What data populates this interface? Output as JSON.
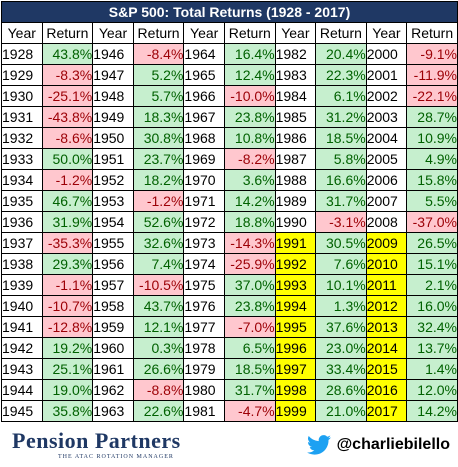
{
  "title": "S&P 500: Total Returns (1928 - 2017)",
  "headers": [
    "Year",
    "Return"
  ],
  "highlight_color": "#ffff00",
  "positive_color": "#c6efce",
  "negative_color": "#ffc7ce",
  "columns": [
    [
      {
        "year": "1928",
        "ret": "43.8%",
        "neg": false,
        "hl": false
      },
      {
        "year": "1929",
        "ret": "-8.3%",
        "neg": true,
        "hl": false
      },
      {
        "year": "1930",
        "ret": "-25.1%",
        "neg": true,
        "hl": false
      },
      {
        "year": "1931",
        "ret": "-43.8%",
        "neg": true,
        "hl": false
      },
      {
        "year": "1932",
        "ret": "-8.6%",
        "neg": true,
        "hl": false
      },
      {
        "year": "1933",
        "ret": "50.0%",
        "neg": false,
        "hl": false
      },
      {
        "year": "1934",
        "ret": "-1.2%",
        "neg": true,
        "hl": false
      },
      {
        "year": "1935",
        "ret": "46.7%",
        "neg": false,
        "hl": false
      },
      {
        "year": "1936",
        "ret": "31.9%",
        "neg": false,
        "hl": false
      },
      {
        "year": "1937",
        "ret": "-35.3%",
        "neg": true,
        "hl": false
      },
      {
        "year": "1938",
        "ret": "29.3%",
        "neg": false,
        "hl": false
      },
      {
        "year": "1939",
        "ret": "-1.1%",
        "neg": true,
        "hl": false
      },
      {
        "year": "1940",
        "ret": "-10.7%",
        "neg": true,
        "hl": false
      },
      {
        "year": "1941",
        "ret": "-12.8%",
        "neg": true,
        "hl": false
      },
      {
        "year": "1942",
        "ret": "19.2%",
        "neg": false,
        "hl": false
      },
      {
        "year": "1943",
        "ret": "25.1%",
        "neg": false,
        "hl": false
      },
      {
        "year": "1944",
        "ret": "19.0%",
        "neg": false,
        "hl": false
      },
      {
        "year": "1945",
        "ret": "35.8%",
        "neg": false,
        "hl": false
      }
    ],
    [
      {
        "year": "1946",
        "ret": "-8.4%",
        "neg": true,
        "hl": false
      },
      {
        "year": "1947",
        "ret": "5.2%",
        "neg": false,
        "hl": false
      },
      {
        "year": "1948",
        "ret": "5.7%",
        "neg": false,
        "hl": false
      },
      {
        "year": "1949",
        "ret": "18.3%",
        "neg": false,
        "hl": false
      },
      {
        "year": "1950",
        "ret": "30.8%",
        "neg": false,
        "hl": false
      },
      {
        "year": "1951",
        "ret": "23.7%",
        "neg": false,
        "hl": false
      },
      {
        "year": "1952",
        "ret": "18.2%",
        "neg": false,
        "hl": false
      },
      {
        "year": "1953",
        "ret": "-1.2%",
        "neg": true,
        "hl": false
      },
      {
        "year": "1954",
        "ret": "52.6%",
        "neg": false,
        "hl": false
      },
      {
        "year": "1955",
        "ret": "32.6%",
        "neg": false,
        "hl": false
      },
      {
        "year": "1956",
        "ret": "7.4%",
        "neg": false,
        "hl": false
      },
      {
        "year": "1957",
        "ret": "-10.5%",
        "neg": true,
        "hl": false
      },
      {
        "year": "1958",
        "ret": "43.7%",
        "neg": false,
        "hl": false
      },
      {
        "year": "1959",
        "ret": "12.1%",
        "neg": false,
        "hl": false
      },
      {
        "year": "1960",
        "ret": "0.3%",
        "neg": false,
        "hl": false
      },
      {
        "year": "1961",
        "ret": "26.6%",
        "neg": false,
        "hl": false
      },
      {
        "year": "1962",
        "ret": "-8.8%",
        "neg": true,
        "hl": false
      },
      {
        "year": "1963",
        "ret": "22.6%",
        "neg": false,
        "hl": false
      }
    ],
    [
      {
        "year": "1964",
        "ret": "16.4%",
        "neg": false,
        "hl": false
      },
      {
        "year": "1965",
        "ret": "12.4%",
        "neg": false,
        "hl": false
      },
      {
        "year": "1966",
        "ret": "-10.0%",
        "neg": true,
        "hl": false
      },
      {
        "year": "1967",
        "ret": "23.8%",
        "neg": false,
        "hl": false
      },
      {
        "year": "1968",
        "ret": "10.8%",
        "neg": false,
        "hl": false
      },
      {
        "year": "1969",
        "ret": "-8.2%",
        "neg": true,
        "hl": false
      },
      {
        "year": "1970",
        "ret": "3.6%",
        "neg": false,
        "hl": false
      },
      {
        "year": "1971",
        "ret": "14.2%",
        "neg": false,
        "hl": false
      },
      {
        "year": "1972",
        "ret": "18.8%",
        "neg": false,
        "hl": false
      },
      {
        "year": "1973",
        "ret": "-14.3%",
        "neg": true,
        "hl": false
      },
      {
        "year": "1974",
        "ret": "-25.9%",
        "neg": true,
        "hl": false
      },
      {
        "year": "1975",
        "ret": "37.0%",
        "neg": false,
        "hl": false
      },
      {
        "year": "1976",
        "ret": "23.8%",
        "neg": false,
        "hl": false
      },
      {
        "year": "1977",
        "ret": "-7.0%",
        "neg": true,
        "hl": false
      },
      {
        "year": "1978",
        "ret": "6.5%",
        "neg": false,
        "hl": false
      },
      {
        "year": "1979",
        "ret": "18.5%",
        "neg": false,
        "hl": false
      },
      {
        "year": "1980",
        "ret": "31.7%",
        "neg": false,
        "hl": false
      },
      {
        "year": "1981",
        "ret": "-4.7%",
        "neg": true,
        "hl": false
      }
    ],
    [
      {
        "year": "1982",
        "ret": "20.4%",
        "neg": false,
        "hl": false
      },
      {
        "year": "1983",
        "ret": "22.3%",
        "neg": false,
        "hl": false
      },
      {
        "year": "1984",
        "ret": "6.1%",
        "neg": false,
        "hl": false
      },
      {
        "year": "1985",
        "ret": "31.2%",
        "neg": false,
        "hl": false
      },
      {
        "year": "1986",
        "ret": "18.5%",
        "neg": false,
        "hl": false
      },
      {
        "year": "1987",
        "ret": "5.8%",
        "neg": false,
        "hl": false
      },
      {
        "year": "1988",
        "ret": "16.6%",
        "neg": false,
        "hl": false
      },
      {
        "year": "1989",
        "ret": "31.7%",
        "neg": false,
        "hl": false
      },
      {
        "year": "1990",
        "ret": "-3.1%",
        "neg": true,
        "hl": false
      },
      {
        "year": "1991",
        "ret": "30.5%",
        "neg": false,
        "hl": true
      },
      {
        "year": "1992",
        "ret": "7.6%",
        "neg": false,
        "hl": true
      },
      {
        "year": "1993",
        "ret": "10.1%",
        "neg": false,
        "hl": true
      },
      {
        "year": "1994",
        "ret": "1.3%",
        "neg": false,
        "hl": true
      },
      {
        "year": "1995",
        "ret": "37.6%",
        "neg": false,
        "hl": true
      },
      {
        "year": "1996",
        "ret": "23.0%",
        "neg": false,
        "hl": true
      },
      {
        "year": "1997",
        "ret": "33.4%",
        "neg": false,
        "hl": true
      },
      {
        "year": "1998",
        "ret": "28.6%",
        "neg": false,
        "hl": true
      },
      {
        "year": "1999",
        "ret": "21.0%",
        "neg": false,
        "hl": true
      }
    ],
    [
      {
        "year": "2000",
        "ret": "-9.1%",
        "neg": true,
        "hl": false
      },
      {
        "year": "2001",
        "ret": "-11.9%",
        "neg": true,
        "hl": false
      },
      {
        "year": "2002",
        "ret": "-22.1%",
        "neg": true,
        "hl": false
      },
      {
        "year": "2003",
        "ret": "28.7%",
        "neg": false,
        "hl": false
      },
      {
        "year": "2004",
        "ret": "10.9%",
        "neg": false,
        "hl": false
      },
      {
        "year": "2005",
        "ret": "4.9%",
        "neg": false,
        "hl": false
      },
      {
        "year": "2006",
        "ret": "15.8%",
        "neg": false,
        "hl": false
      },
      {
        "year": "2007",
        "ret": "5.5%",
        "neg": false,
        "hl": false
      },
      {
        "year": "2008",
        "ret": "-37.0%",
        "neg": true,
        "hl": false
      },
      {
        "year": "2009",
        "ret": "26.5%",
        "neg": false,
        "hl": true
      },
      {
        "year": "2010",
        "ret": "15.1%",
        "neg": false,
        "hl": true
      },
      {
        "year": "2011",
        "ret": "2.1%",
        "neg": false,
        "hl": true
      },
      {
        "year": "2012",
        "ret": "16.0%",
        "neg": false,
        "hl": true
      },
      {
        "year": "2013",
        "ret": "32.4%",
        "neg": false,
        "hl": true
      },
      {
        "year": "2014",
        "ret": "13.7%",
        "neg": false,
        "hl": true
      },
      {
        "year": "2015",
        "ret": "1.4%",
        "neg": false,
        "hl": true
      },
      {
        "year": "2016",
        "ret": "12.0%",
        "neg": false,
        "hl": true
      },
      {
        "year": "2017",
        "ret": "14.2%",
        "neg": false,
        "hl": true
      }
    ]
  ],
  "footer": {
    "logo_text": "Pension Partners",
    "logo_subtext": "THE ATAC ROTATION MANAGER",
    "logo_icon": "pension-partners-logo",
    "handle": "@charliebilello",
    "handle_icon": "twitter-bird-icon",
    "twitter_color": "#1da1f2"
  }
}
